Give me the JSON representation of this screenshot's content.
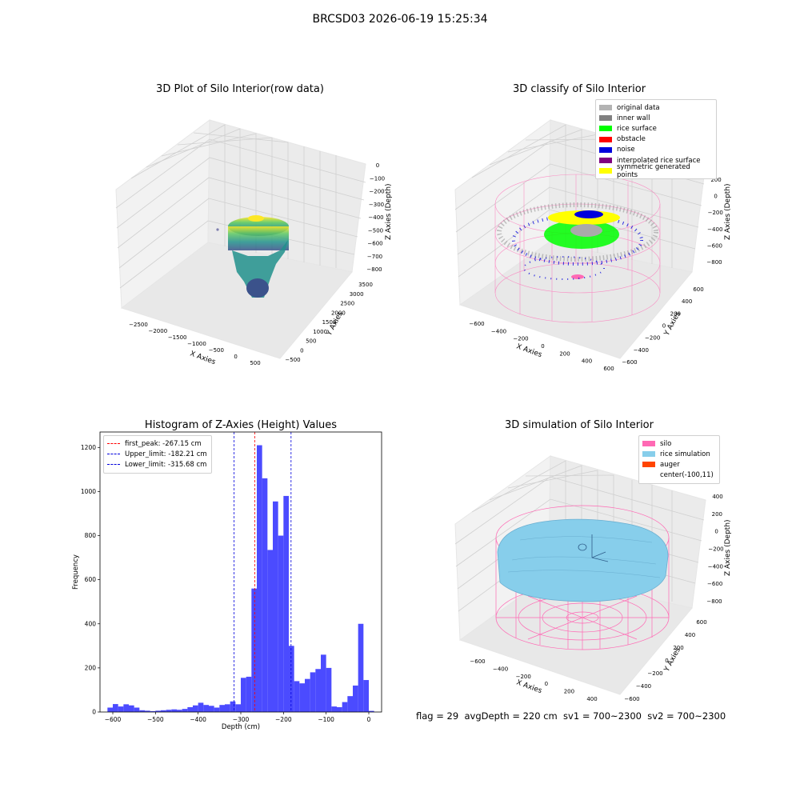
{
  "suptitle": "BRCSD03 2026-06-19 15:25:34",
  "footer": "flag = 29  avgDepth = 220 cm  sv1 = 700~2300  sv2 = 700~2300",
  "chart_data": [
    {
      "type": "scatter",
      "subtype": "3d",
      "title": "3D Plot of Silo Interior(row data)",
      "xlabel": "X Axies",
      "ylabel": "Y Axies",
      "zlabel": "Z Axies (Depth)",
      "x_ticks": [
        "−2500",
        "−2000",
        "−1500",
        "−1000",
        "−500",
        "0",
        "500"
      ],
      "y_ticks": [
        "−500",
        "0",
        "500",
        "1000",
        "1500",
        "2000",
        "2500",
        "3000",
        "3500"
      ],
      "z_ticks": [
        "0",
        "−100",
        "−200",
        "−300",
        "−400",
        "−500",
        "−600",
        "−700",
        "−800"
      ],
      "colormap": "viridis",
      "grid": true
    },
    {
      "type": "scatter",
      "subtype": "3d",
      "title": "3D classify of Silo Interior",
      "xlabel": "X Axies",
      "ylabel": "Y Axies",
      "zlabel": "Z Axies (Depth)",
      "x_ticks": [
        "−600",
        "−400",
        "−200",
        "0",
        "200",
        "400",
        "600"
      ],
      "y_ticks": [
        "−600",
        "−400",
        "−200",
        "0",
        "200",
        "400",
        "600"
      ],
      "z_ticks": [
        "200",
        "0",
        "−200",
        "−400",
        "−600",
        "−800"
      ],
      "z_ticks_partial": [
        "00"
      ],
      "legend": [
        {
          "label": "original data",
          "color": "#b3b3b3"
        },
        {
          "label": "inner wall",
          "color": "#808080"
        },
        {
          "label": "rice surface",
          "color": "#00ff00"
        },
        {
          "label": "obstacle",
          "color": "#ff0000"
        },
        {
          "label": "noise",
          "color": "#0000dd"
        },
        {
          "label": "interpolated rice surface",
          "color": "#800080"
        },
        {
          "label": "symmetric generated points",
          "color": "#ffff00"
        }
      ],
      "legend_position": "top-right",
      "grid": true
    },
    {
      "type": "bar",
      "subtype": "histogram",
      "title": "Histogram of Z-Axies (Height) Values",
      "xlabel": "Depth (cm)",
      "ylabel": "Frequency",
      "xlim": [
        -630,
        30
      ],
      "ylim": [
        0,
        1270
      ],
      "x_ticks": [
        -600,
        -500,
        -400,
        -300,
        -200,
        -100,
        0
      ],
      "x_tick_labels": [
        "−600",
        "−500",
        "−400",
        "−300",
        "−200",
        "−100",
        "0"
      ],
      "y_ticks": [
        0,
        200,
        400,
        600,
        800,
        1000,
        1200
      ],
      "y_tick_labels": [
        "0",
        "200",
        "400",
        "600",
        "800",
        "1000",
        "1200"
      ],
      "bar_color": "#4b4bff",
      "bin_width": 12.5,
      "bins": [
        {
          "x0": -612.5,
          "count": 20
        },
        {
          "x0": -600,
          "count": 36
        },
        {
          "x0": -587.5,
          "count": 25
        },
        {
          "x0": -575,
          "count": 35
        },
        {
          "x0": -562.5,
          "count": 30
        },
        {
          "x0": -550,
          "count": 20
        },
        {
          "x0": -537.5,
          "count": 8
        },
        {
          "x0": -525,
          "count": 6
        },
        {
          "x0": -512.5,
          "count": 4
        },
        {
          "x0": -500,
          "count": 6
        },
        {
          "x0": -487.5,
          "count": 8
        },
        {
          "x0": -475,
          "count": 10
        },
        {
          "x0": -462.5,
          "count": 12
        },
        {
          "x0": -450,
          "count": 10
        },
        {
          "x0": -437.5,
          "count": 14
        },
        {
          "x0": -425,
          "count": 22
        },
        {
          "x0": -412.5,
          "count": 30
        },
        {
          "x0": -400,
          "count": 42
        },
        {
          "x0": -387.5,
          "count": 32
        },
        {
          "x0": -375,
          "count": 28
        },
        {
          "x0": -362.5,
          "count": 20
        },
        {
          "x0": -350,
          "count": 32
        },
        {
          "x0": -337.5,
          "count": 35
        },
        {
          "x0": -325,
          "count": 48
        },
        {
          "x0": -312.5,
          "count": 35
        },
        {
          "x0": -300,
          "count": 155
        },
        {
          "x0": -287.5,
          "count": 160
        },
        {
          "x0": -275,
          "count": 560
        },
        {
          "x0": -262.5,
          "count": 1210
        },
        {
          "x0": -250,
          "count": 1060
        },
        {
          "x0": -237.5,
          "count": 735
        },
        {
          "x0": -225,
          "count": 955
        },
        {
          "x0": -212.5,
          "count": 800
        },
        {
          "x0": -200,
          "count": 980
        },
        {
          "x0": -187.5,
          "count": 300
        },
        {
          "x0": -175,
          "count": 140
        },
        {
          "x0": -162.5,
          "count": 130
        },
        {
          "x0": -150,
          "count": 150
        },
        {
          "x0": -137.5,
          "count": 180
        },
        {
          "x0": -125,
          "count": 195
        },
        {
          "x0": -112.5,
          "count": 260
        },
        {
          "x0": -100,
          "count": 200
        },
        {
          "x0": -87.5,
          "count": 25
        },
        {
          "x0": -75,
          "count": 22
        },
        {
          "x0": -62.5,
          "count": 45
        },
        {
          "x0": -50,
          "count": 72
        },
        {
          "x0": -37.5,
          "count": 120
        },
        {
          "x0": -25,
          "count": 400
        },
        {
          "x0": -12.5,
          "count": 145
        },
        {
          "x0": 0,
          "count": 5
        }
      ],
      "reference_lines": [
        {
          "label": "first_peak: -267.15 cm",
          "x": -267.15,
          "color": "#ff0000"
        },
        {
          "label": "Upper_limit: -182.21 cm",
          "x": -182.21,
          "color": "#0000dd"
        },
        {
          "label": "Lower_limit: -315.68 cm",
          "x": -315.68,
          "color": "#0000dd"
        }
      ],
      "legend_position": "top-left",
      "grid": false
    },
    {
      "type": "scatter",
      "subtype": "3d",
      "title": "3D simulation of Silo Interior",
      "xlabel": "X Axies",
      "ylabel": "Y Axies",
      "zlabel": "Z Axies (Depth)",
      "x_ticks": [
        "−600",
        "−400",
        "−200",
        "0",
        "200",
        "400"
      ],
      "y_ticks": [
        "−600",
        "−400",
        "−200",
        "0",
        "200",
        "400",
        "600"
      ],
      "z_ticks": [
        "400",
        "200",
        "0",
        "−200",
        "−400",
        "−600",
        "−800"
      ],
      "legend": [
        {
          "label": "silo",
          "color": "#ff69b4"
        },
        {
          "label": "rice simulation",
          "color": "#87ceeb"
        },
        {
          "label": "auger",
          "color": "#ff4500"
        },
        {
          "label": "center(-100,11)",
          "color": ""
        }
      ],
      "legend_position": "top-right",
      "grid": true
    }
  ]
}
